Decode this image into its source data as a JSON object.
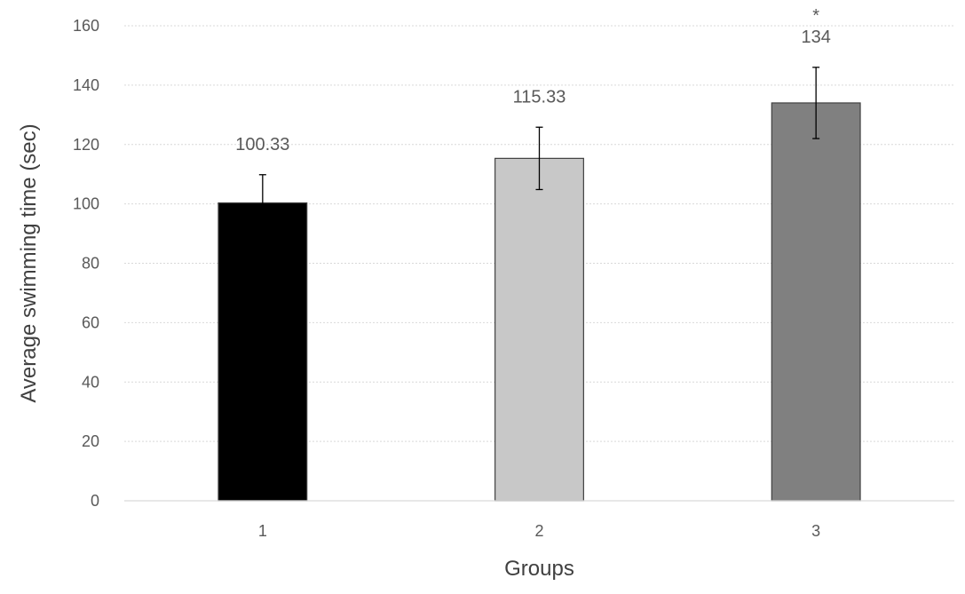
{
  "chart_data": {
    "type": "bar",
    "title": "",
    "xlabel": "Groups",
    "ylabel": "Average swimming time  (sec)",
    "categories": [
      "1",
      "2",
      "3"
    ],
    "values": [
      100.33,
      115.33,
      134
    ],
    "value_labels": [
      "100.33",
      "115.33",
      "134"
    ],
    "error": [
      9.5,
      10.5,
      12
    ],
    "annotations": [
      "",
      "",
      "*"
    ],
    "colors": [
      "#000000",
      "#c8c8c8",
      "#808080"
    ],
    "ylim": [
      0,
      160
    ],
    "yticks": [
      0,
      20,
      40,
      60,
      80,
      100,
      120,
      140,
      160
    ],
    "grid": true,
    "legend": "none"
  }
}
